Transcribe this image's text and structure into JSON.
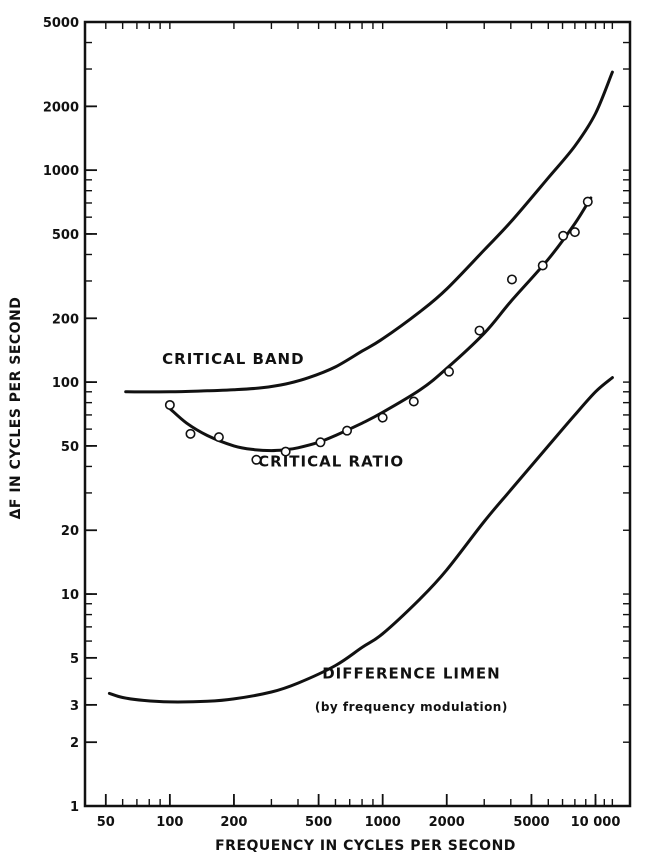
{
  "chart_data": {
    "type": "line",
    "xscale": "log",
    "yscale": "log",
    "xlim": [
      45,
      13000
    ],
    "ylim": [
      1,
      5000
    ],
    "xlabel": "FREQUENCY IN CYCLES PER SECOND",
    "ylabel": "ΔF IN CYCLES PER SECOND",
    "xticks": [
      {
        "value": 50,
        "label": "50"
      },
      {
        "value": 100,
        "label": "100"
      },
      {
        "value": 200,
        "label": "200"
      },
      {
        "value": 500,
        "label": "500"
      },
      {
        "value": 1000,
        "label": "1000"
      },
      {
        "value": 2000,
        "label": "2000"
      },
      {
        "value": 5000,
        "label": "5000"
      },
      {
        "value": 10000,
        "label": "10 000"
      }
    ],
    "yticks": [
      {
        "value": 1,
        "label": "1"
      },
      {
        "value": 2,
        "label": "2"
      },
      {
        "value": 3,
        "label": "3"
      },
      {
        "value": 5,
        "label": "5"
      },
      {
        "value": 10,
        "label": "10"
      },
      {
        "value": 20,
        "label": "20"
      },
      {
        "value": 50,
        "label": "50"
      },
      {
        "value": 100,
        "label": "100"
      },
      {
        "value": 200,
        "label": "200"
      },
      {
        "value": 500,
        "label": "500"
      },
      {
        "value": 1000,
        "label": "1000"
      },
      {
        "value": 2000,
        "label": "2000"
      },
      {
        "value": 5000,
        "label": "5000"
      }
    ],
    "grid": false,
    "series": [
      {
        "name": "CRITICAL BAND",
        "label_at": {
          "x": 92,
          "y": 122
        },
        "x": [
          62,
          100,
          150,
          200,
          270,
          350,
          450,
          600,
          800,
          1000,
          1500,
          2000,
          3000,
          4000,
          6000,
          8000,
          10000,
          12000
        ],
        "y": [
          90,
          90,
          91,
          92,
          94,
          98,
          105,
          118,
          140,
          160,
          215,
          275,
          420,
          570,
          920,
          1300,
          1850,
          2900
        ]
      },
      {
        "name": "CRITICAL RATIO",
        "label_at": {
          "x": 260,
          "y": 40
        },
        "x": [
          100,
          120,
          150,
          200,
          250,
          300,
          350,
          400,
          500,
          600,
          800,
          1000,
          1500,
          2000,
          3000,
          4000,
          6000,
          8000,
          9500
        ],
        "y": [
          75,
          64,
          56,
          50,
          48,
          47.5,
          48,
          49,
          52,
          56,
          64,
          72,
          92,
          116,
          170,
          240,
          380,
          560,
          740
        ]
      },
      {
        "name": "DIFFERENCE LIMEN",
        "sublabel": "(by frequency modulation)",
        "label_at": {
          "x": 520,
          "y": 4.0
        },
        "sublabel_at": {
          "x": 480,
          "y": 2.8
        },
        "x": [
          52,
          60,
          75,
          100,
          150,
          200,
          300,
          400,
          600,
          800,
          1000,
          1500,
          2000,
          3000,
          4000,
          6000,
          8000,
          10000,
          12000
        ],
        "y": [
          3.4,
          3.25,
          3.15,
          3.1,
          3.12,
          3.2,
          3.45,
          3.8,
          4.6,
          5.6,
          6.5,
          9.5,
          13,
          22,
          31,
          50,
          70,
          90,
          105
        ]
      }
    ],
    "points": {
      "series": "CRITICAL RATIO",
      "x": [
        100,
        125,
        170,
        255,
        350,
        510,
        680,
        1000,
        1400,
        2050,
        2850,
        4050,
        5650,
        7050,
        8000,
        9200
      ],
      "y": [
        78,
        57,
        55,
        43,
        47,
        52,
        59,
        68,
        81,
        112,
        175,
        305,
        355,
        490,
        510,
        710
      ]
    }
  }
}
